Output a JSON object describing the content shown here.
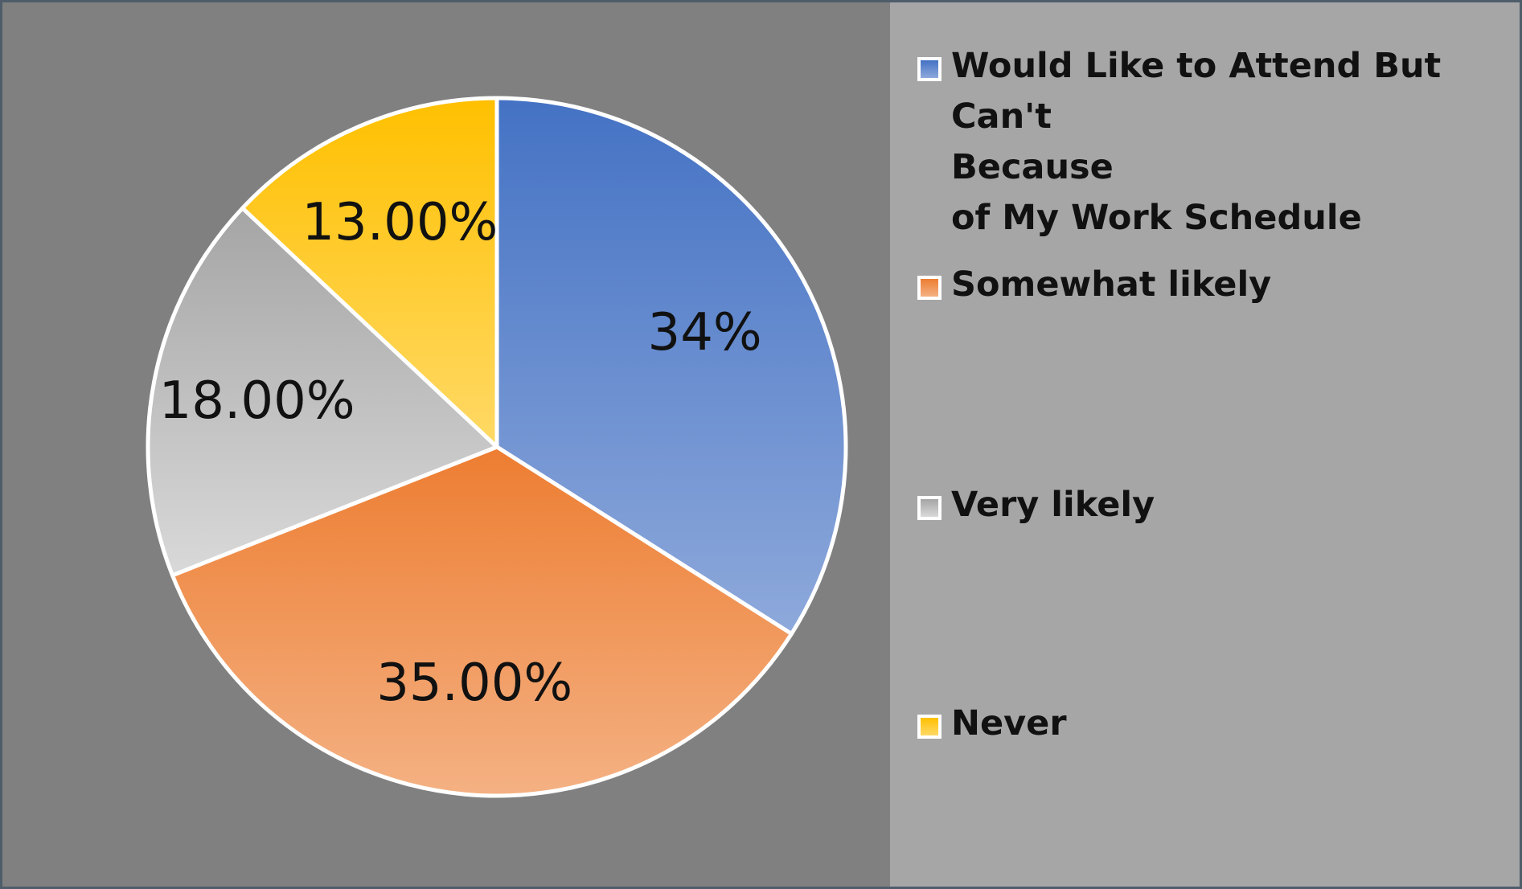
{
  "chart_data": {
    "type": "pie",
    "title": "",
    "slices": [
      {
        "label": "Would Like to Attend But Can't\nBecause\nof My Work Schedule",
        "value": 34,
        "data_label": "34%",
        "color_top": "#4472c4",
        "color_bottom": "#8ea9db"
      },
      {
        "label": "Somewhat likely",
        "value": 35,
        "data_label": "35.00%",
        "color_top": "#ed7d31",
        "color_bottom": "#f4b183"
      },
      {
        "label": "Very likely",
        "value": 18,
        "data_label": "18.00%",
        "color_top": "#a5a5a5",
        "color_bottom": "#d9d9d9"
      },
      {
        "label": "Never",
        "value": 13,
        "data_label": "13.00%",
        "color_top": "#ffc000",
        "color_bottom": "#ffd966"
      }
    ],
    "legend_position": "right",
    "start_angle_deg": 0,
    "direction": "clockwise"
  }
}
